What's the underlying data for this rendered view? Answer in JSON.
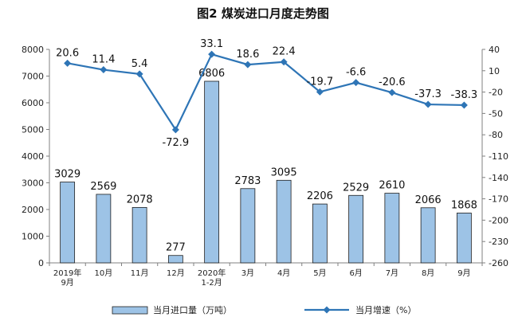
{
  "chart_data": {
    "type": "bar+line",
    "title": "图2  煤炭进口月度走势图",
    "categories": [
      [
        "2019年",
        "9月"
      ],
      [
        "10月"
      ],
      [
        "11月"
      ],
      [
        "12月"
      ],
      [
        "2020年",
        "1-2月"
      ],
      [
        "3月"
      ],
      [
        "4月"
      ],
      [
        "5月"
      ],
      [
        "6月"
      ],
      [
        "7月"
      ],
      [
        "8月"
      ],
      [
        "9月"
      ]
    ],
    "series": [
      {
        "name": "当月进口量（万吨）",
        "type": "bar",
        "axis": "left",
        "color": "#9dc3e6",
        "values": [
          3029,
          2569,
          2078,
          277,
          6806,
          2783,
          3095,
          2206,
          2529,
          2610,
          2066,
          1868
        ],
        "labels": [
          "3029",
          "2569",
          "2078",
          "277",
          "6806",
          "2783",
          "3095",
          "2206",
          "2529",
          "2610",
          "2066",
          "1868"
        ]
      },
      {
        "name": "当月增速（%）",
        "type": "line",
        "axis": "right",
        "color": "#2e75b6",
        "values": [
          20.6,
          11.4,
          5.4,
          -72.9,
          33.1,
          18.6,
          22.4,
          -19.7,
          -6.6,
          -20.6,
          -37.3,
          -38.3
        ],
        "labels": [
          "20.6",
          "11.4",
          "5.4",
          "-72.9",
          "33.1",
          "18.6",
          "22.4",
          "-19.7",
          "-6.6",
          "-20.6",
          "-37.3",
          "-38.3"
        ]
      }
    ],
    "y_left": {
      "min": 0,
      "max": 8000,
      "ticks": [
        0,
        1000,
        2000,
        3000,
        4000,
        5000,
        6000,
        7000,
        8000
      ]
    },
    "y_right": {
      "min": -260,
      "max": 40,
      "ticks": [
        40,
        10,
        -20,
        -50,
        -80,
        -110,
        -140,
        -170,
        -200,
        -230,
        -260
      ]
    },
    "legend_position": "bottom",
    "grid": false
  }
}
